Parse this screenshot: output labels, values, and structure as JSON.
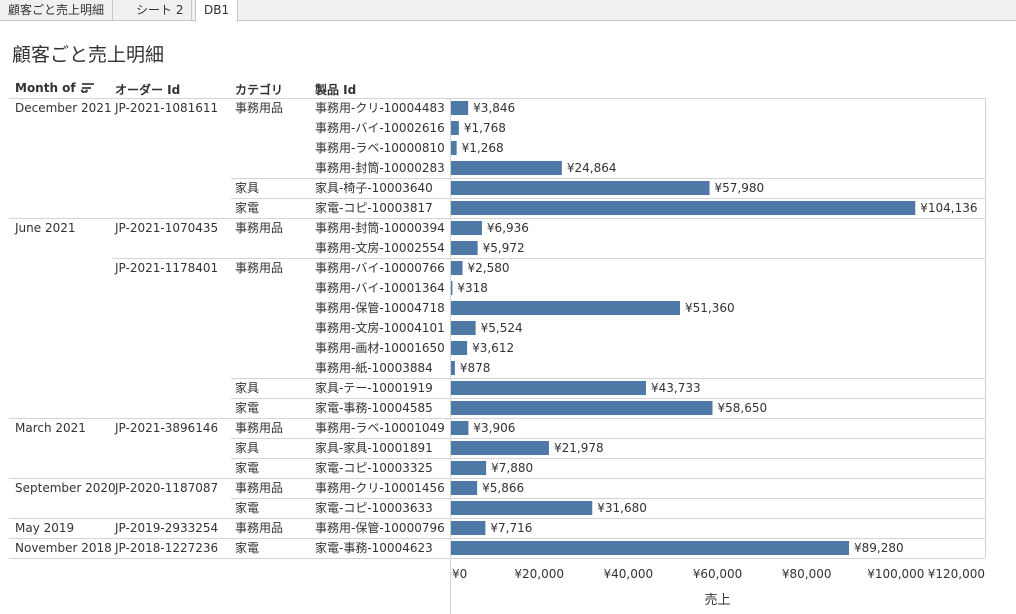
{
  "tabs": [
    {
      "label": "顧客ごと売上明細",
      "active": false
    },
    {
      "label": "シート 2",
      "active": false
    },
    {
      "label": "DB1",
      "active": true
    }
  ],
  "title": "顧客ごと売上明細",
  "headers": {
    "month": "Month of ..",
    "order": "オーダー Id",
    "category": "カテゴリ",
    "product": "製品 Id"
  },
  "chart_data": {
    "type": "bar",
    "orientation": "horizontal",
    "xlabel": "売上",
    "xlim": [
      0,
      120000
    ],
    "xticks": [
      "¥0",
      "¥20,000",
      "¥40,000",
      "¥60,000",
      "¥80,000",
      "¥100,000",
      "¥120,000"
    ],
    "bar_color": "#4e79a7",
    "rows": [
      {
        "month": "December 2021",
        "order": "JP-2021-1081611",
        "category": "事務用品",
        "product": "事務用-クリ-10004483",
        "value": 3846,
        "label": "¥3,846"
      },
      {
        "month": "",
        "order": "",
        "category": "",
        "product": "事務用-バイ-10002616",
        "value": 1768,
        "label": "¥1,768"
      },
      {
        "month": "",
        "order": "",
        "category": "",
        "product": "事務用-ラベ-10000810",
        "value": 1268,
        "label": "¥1,268"
      },
      {
        "month": "",
        "order": "",
        "category": "",
        "product": "事務用-封筒-10000283",
        "value": 24864,
        "label": "¥24,864"
      },
      {
        "month": "",
        "order": "",
        "category": "家具",
        "product": "家具-椅子-10003640",
        "value": 57980,
        "label": "¥57,980"
      },
      {
        "month": "",
        "order": "",
        "category": "家電",
        "product": "家電-コピ-10003817",
        "value": 104136,
        "label": "¥104,136"
      },
      {
        "month": "June 2021",
        "order": "JP-2021-1070435",
        "category": "事務用品",
        "product": "事務用-封筒-10000394",
        "value": 6936,
        "label": "¥6,936"
      },
      {
        "month": "",
        "order": "",
        "category": "",
        "product": "事務用-文房-10002554",
        "value": 5972,
        "label": "¥5,972"
      },
      {
        "month": "",
        "order": "JP-2021-1178401",
        "category": "事務用品",
        "product": "事務用-バイ-10000766",
        "value": 2580,
        "label": "¥2,580"
      },
      {
        "month": "",
        "order": "",
        "category": "",
        "product": "事務用-バイ-10001364",
        "value": 318,
        "label": "¥318"
      },
      {
        "month": "",
        "order": "",
        "category": "",
        "product": "事務用-保管-10004718",
        "value": 51360,
        "label": "¥51,360"
      },
      {
        "month": "",
        "order": "",
        "category": "",
        "product": "事務用-文房-10004101",
        "value": 5524,
        "label": "¥5,524"
      },
      {
        "month": "",
        "order": "",
        "category": "",
        "product": "事務用-画材-10001650",
        "value": 3612,
        "label": "¥3,612"
      },
      {
        "month": "",
        "order": "",
        "category": "",
        "product": "事務用-紙-10003884",
        "value": 878,
        "label": "¥878"
      },
      {
        "month": "",
        "order": "",
        "category": "家具",
        "product": "家具-テー-10001919",
        "value": 43733,
        "label": "¥43,733"
      },
      {
        "month": "",
        "order": "",
        "category": "家電",
        "product": "家電-事務-10004585",
        "value": 58650,
        "label": "¥58,650"
      },
      {
        "month": "March 2021",
        "order": "JP-2021-3896146",
        "category": "事務用品",
        "product": "事務用-ラベ-10001049",
        "value": 3906,
        "label": "¥3,906"
      },
      {
        "month": "",
        "order": "",
        "category": "家具",
        "product": "家具-家具-10001891",
        "value": 21978,
        "label": "¥21,978"
      },
      {
        "month": "",
        "order": "",
        "category": "家電",
        "product": "家電-コピ-10003325",
        "value": 7880,
        "label": "¥7,880"
      },
      {
        "month": "September 2020",
        "order": "JP-2020-1187087",
        "category": "事務用品",
        "product": "事務用-クリ-10001456",
        "value": 5866,
        "label": "¥5,866"
      },
      {
        "month": "",
        "order": "",
        "category": "家電",
        "product": "家電-コピ-10003633",
        "value": 31680,
        "label": "¥31,680"
      },
      {
        "month": "May 2019",
        "order": "JP-2019-2933254",
        "category": "事務用品",
        "product": "事務用-保管-10000796",
        "value": 7716,
        "label": "¥7,716"
      },
      {
        "month": "November 2018",
        "order": "JP-2018-1227236",
        "category": "家電",
        "product": "家電-事務-10004623",
        "value": 89280,
        "label": "¥89,280"
      }
    ]
  }
}
